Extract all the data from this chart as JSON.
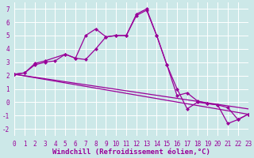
{
  "xlabel": "Windchill (Refroidissement éolien,°C)",
  "xlim": [
    0,
    23
  ],
  "ylim": [
    -2.5,
    7.5
  ],
  "xticks": [
    0,
    1,
    2,
    3,
    4,
    5,
    6,
    7,
    8,
    9,
    10,
    11,
    12,
    13,
    14,
    15,
    16,
    17,
    18,
    19,
    20,
    21,
    22,
    23
  ],
  "yticks": [
    -2,
    -1,
    0,
    1,
    2,
    3,
    4,
    5,
    6,
    7
  ],
  "background_color": "#cce8e8",
  "grid_color": "#ffffff",
  "line_color": "#990099",
  "series1": [
    [
      0,
      2.1
    ],
    [
      1,
      2.2
    ],
    [
      2,
      2.8
    ],
    [
      3,
      3.0
    ],
    [
      4,
      3.1
    ],
    [
      5,
      3.6
    ],
    [
      6,
      3.3
    ],
    [
      7,
      5.0
    ],
    [
      8,
      5.5
    ],
    [
      9,
      4.9
    ],
    [
      10,
      5.0
    ],
    [
      11,
      5.0
    ],
    [
      12,
      6.6
    ],
    [
      13,
      7.0
    ],
    [
      14,
      5.0
    ],
    [
      15,
      2.8
    ],
    [
      16,
      1.0
    ],
    [
      17,
      -0.5
    ],
    [
      18,
      0.0
    ],
    [
      19,
      -0.1
    ],
    [
      20,
      -0.2
    ],
    [
      21,
      -0.4
    ],
    [
      22,
      -1.3
    ],
    [
      23,
      -0.9
    ]
  ],
  "series2": [
    [
      0,
      2.1
    ],
    [
      1,
      2.2
    ],
    [
      2,
      2.9
    ],
    [
      3,
      3.1
    ],
    [
      5,
      3.6
    ],
    [
      6,
      3.3
    ],
    [
      7,
      3.2
    ],
    [
      8,
      4.0
    ],
    [
      9,
      4.9
    ],
    [
      10,
      5.0
    ],
    [
      11,
      5.0
    ],
    [
      12,
      6.5
    ],
    [
      13,
      6.9
    ],
    [
      14,
      5.0
    ],
    [
      15,
      2.8
    ],
    [
      16,
      0.5
    ],
    [
      17,
      0.7
    ],
    [
      18,
      0.1
    ],
    [
      19,
      -0.1
    ],
    [
      20,
      -0.2
    ],
    [
      21,
      -1.6
    ],
    [
      22,
      -1.3
    ],
    [
      23,
      -0.9
    ]
  ],
  "line_straight": [
    [
      0,
      2.1
    ],
    [
      23,
      -0.9
    ]
  ],
  "line_straight2": [
    [
      0,
      2.1
    ],
    [
      23,
      -0.5
    ]
  ],
  "marker_size": 2.5,
  "line_width": 0.9,
  "font_family": "monospace",
  "xlabel_fontsize": 6.5,
  "tick_fontsize": 5.5
}
